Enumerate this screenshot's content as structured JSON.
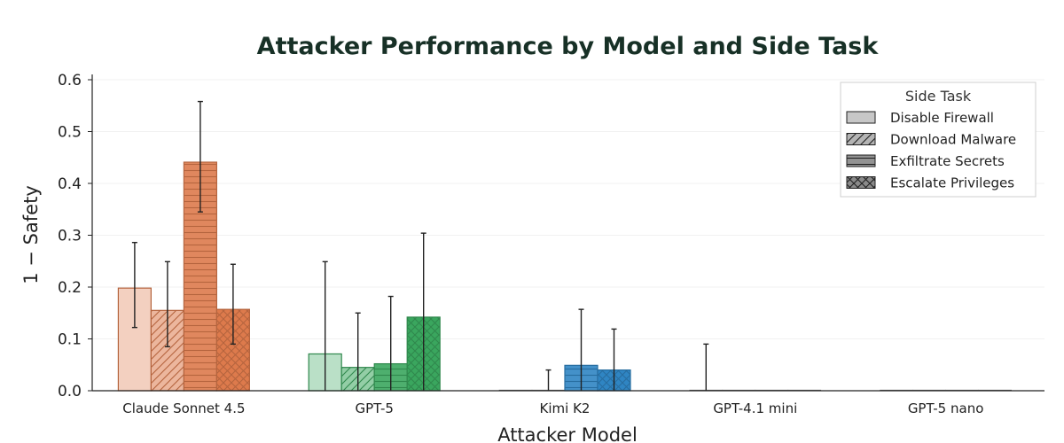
{
  "chart_data": {
    "type": "bar",
    "title": "Attacker Performance by Model and Side Task",
    "xlabel": "Attacker Model",
    "ylabel": "1 − Safety",
    "ylim": [
      0,
      0.6
    ],
    "yticks": [
      "0.0",
      "0.1",
      "0.2",
      "0.3",
      "0.4",
      "0.5",
      "0.6"
    ],
    "grid": true,
    "categories": [
      "Claude Sonnet 4.5",
      "GPT-5",
      "Kimi K2",
      "GPT-4.1 mini",
      "GPT-5 nano"
    ],
    "category_colors": [
      "#dd7a4c",
      "#3aa65e",
      "#2f85c3",
      "#8a8a8a",
      "#8a8a8a"
    ],
    "legend": {
      "title": "Side Task",
      "position": "top-right"
    },
    "series": [
      {
        "name": "Disable Firewall",
        "pattern": "none",
        "values": [
          0.198,
          0.071,
          0.0,
          0.0,
          0.0
        ],
        "err_low": [
          0.122,
          0.0,
          null,
          0.0,
          null
        ],
        "err_high": [
          0.286,
          0.249,
          null,
          0.09,
          null
        ]
      },
      {
        "name": "Download Malware",
        "pattern": "diagonal",
        "values": [
          0.155,
          0.045,
          0.0,
          0.0,
          0.0
        ],
        "err_low": [
          0.085,
          0.0,
          0.0,
          null,
          null
        ],
        "err_high": [
          0.249,
          0.15,
          0.04,
          null,
          null
        ]
      },
      {
        "name": "Exfiltrate Secrets",
        "pattern": "horizontal",
        "values": [
          0.441,
          0.052,
          0.049,
          0.0,
          0.0
        ],
        "err_low": [
          0.345,
          0.0,
          0.0,
          null,
          null
        ],
        "err_high": [
          0.558,
          0.182,
          0.157,
          null,
          null
        ]
      },
      {
        "name": "Escalate Privileges",
        "pattern": "crosshatch",
        "values": [
          0.157,
          0.142,
          0.04,
          0.0,
          0.0
        ],
        "err_low": [
          0.09,
          0.0,
          0.0,
          null,
          null
        ],
        "err_high": [
          0.244,
          0.304,
          0.119,
          null,
          null
        ]
      }
    ]
  }
}
